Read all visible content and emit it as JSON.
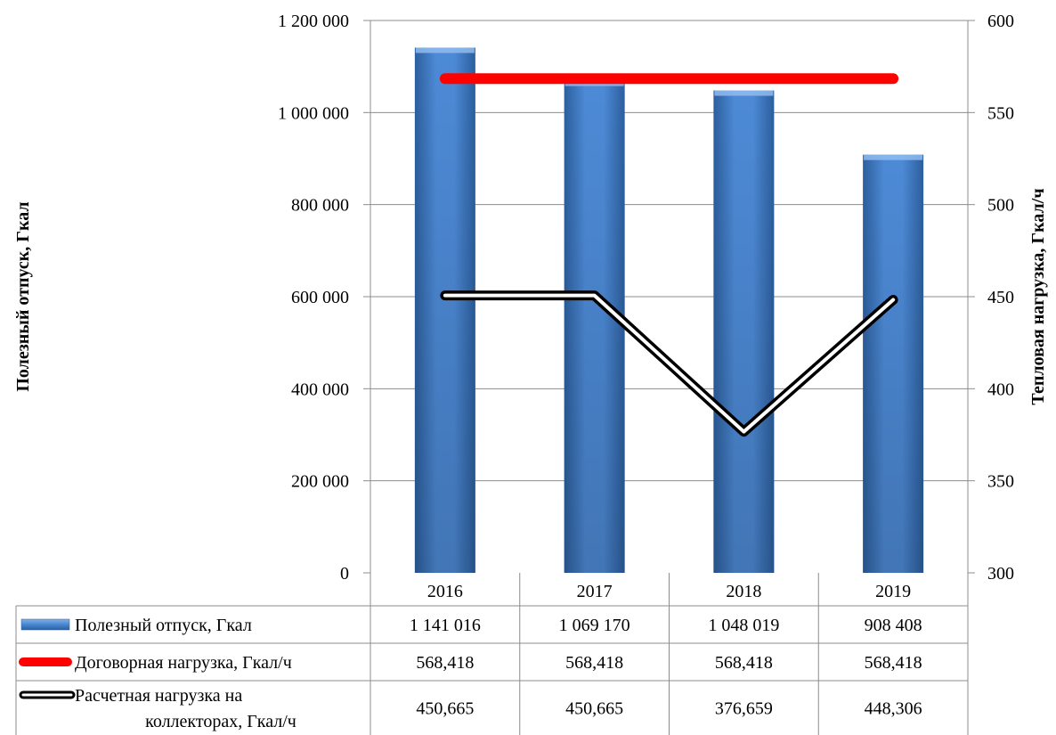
{
  "chart_data": {
    "type": "bar",
    "categories": [
      "2016",
      "2017",
      "2018",
      "2019"
    ],
    "ylabel": "Полезный отпуск, Гкал",
    "y2label": "Тепловая нагрузка, Гкал/ч",
    "ylim": [
      0,
      1200000
    ],
    "y2lim": [
      300,
      600
    ],
    "yticks": [
      "0",
      "200 000",
      "400 000",
      "600 000",
      "800 000",
      "1 000 000",
      "1 200 000"
    ],
    "y2ticks": [
      "300",
      "350",
      "400",
      "450",
      "500",
      "550",
      "600"
    ],
    "grid": true,
    "legend": "data-table-below",
    "series": [
      {
        "name": "Полезный отпуск, Гкал",
        "type": "bar",
        "axis": "left",
        "color": "#4a86d0",
        "values": [
          1141016,
          1069170,
          1048019,
          908408
        ],
        "labels": [
          "1 141 016",
          "1 069 170",
          "1 048 019",
          "908 408"
        ]
      },
      {
        "name": "Договорная нагрузка, Гкал/ч",
        "type": "line",
        "axis": "right",
        "color": "#ff0000",
        "values": [
          568.418,
          568.418,
          568.418,
          568.418
        ],
        "labels": [
          "568,418",
          "568,418",
          "568,418",
          "568,418"
        ]
      },
      {
        "name": "Расчетная нагрузка на коллекторах, Гкал/ч",
        "name_lines": [
          "Расчетная нагрузка на",
          "коллекторах, Гкал/ч"
        ],
        "type": "line",
        "axis": "right",
        "color": "#000000",
        "values": [
          450.665,
          450.665,
          376.659,
          448.306
        ],
        "labels": [
          "450,665",
          "450,665",
          "376,659",
          "448,306"
        ]
      }
    ]
  }
}
